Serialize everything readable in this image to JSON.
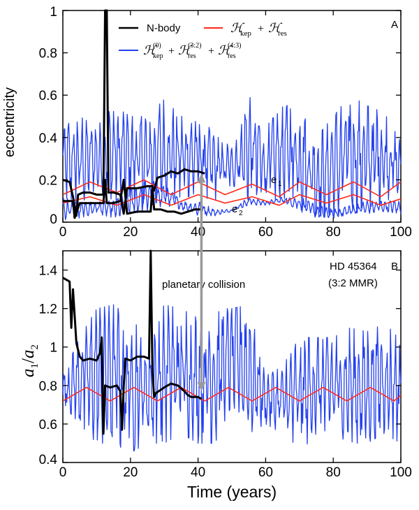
{
  "chart_data": [
    {
      "panel": "A",
      "type": "line",
      "ylabel": "eccentricity",
      "xlim": [
        0,
        100
      ],
      "ylim": [
        0,
        1
      ],
      "xticks": [
        0,
        20,
        40,
        60,
        80,
        100
      ],
      "yticks": [
        0,
        0.2,
        0.4,
        0.6,
        0.8,
        1
      ],
      "ytick_labels": [
        "0",
        "0.2",
        "0.4",
        "0.6",
        "0.8",
        "1"
      ],
      "grid": false,
      "legend": {
        "placement": "top",
        "entries": [
          {
            "label": "N-body",
            "color": "#000000"
          },
          {
            "label": "H_kep + H_res",
            "color": "#ff2a1a"
          },
          {
            "label": "H_kep^(0) + H_res^(3:2) + H_res^(4:3)",
            "color": "#2340ee"
          }
        ]
      },
      "annotations": [
        {
          "text": "e",
          "sub": "1",
          "x": 60,
          "y": 0.19
        },
        {
          "text": "e",
          "sub": "2",
          "x": 49,
          "y": 0.05
        }
      ],
      "series": [
        {
          "name": "N-body e1",
          "color": "#000000",
          "x": [
            0,
            2,
            3,
            4,
            4.5,
            6,
            8,
            10,
            12,
            12.5,
            13,
            13.5,
            15,
            17,
            18,
            19,
            22,
            25,
            26.5,
            27,
            28,
            30,
            32,
            34,
            36,
            38,
            40,
            42
          ],
          "y": [
            0.2,
            0.19,
            0.12,
            0.03,
            0.13,
            0.14,
            0.14,
            0.13,
            0.13,
            1.0,
            1.0,
            0.14,
            0.14,
            0.13,
            0.04,
            0.16,
            0.16,
            0.17,
            0.17,
            0.15,
            0.21,
            0.22,
            0.24,
            0.23,
            0.25,
            0.24,
            0.24,
            0.23
          ]
        },
        {
          "name": "N-body e2",
          "color": "#000000",
          "x": [
            0,
            2,
            3,
            3.5,
            5,
            8,
            11,
            12,
            12.5,
            13,
            15,
            17,
            18,
            19,
            22,
            26,
            26.5,
            27,
            29,
            31,
            33,
            35,
            37,
            39,
            41
          ],
          "y": [
            0.1,
            0.1,
            0.1,
            0.02,
            0.09,
            0.09,
            0.09,
            0.09,
            0.2,
            0.09,
            0.09,
            0.1,
            0.2,
            0.04,
            0.05,
            0.05,
            0.17,
            0.06,
            0.06,
            0.05,
            0.05,
            0.04,
            0.05,
            0.06,
            0.06
          ]
        },
        {
          "name": "H_kep + H_res e1",
          "color": "#ff2a1a",
          "x": [
            0,
            8,
            16,
            24,
            32,
            40,
            48,
            56,
            64,
            70,
            78,
            86,
            94,
            100
          ],
          "y": [
            0.13,
            0.19,
            0.14,
            0.2,
            0.13,
            0.19,
            0.13,
            0.18,
            0.12,
            0.19,
            0.13,
            0.19,
            0.12,
            0.19
          ]
        },
        {
          "name": "H_kep + H_res e2",
          "color": "#ff2a1a",
          "x": [
            0,
            8,
            16,
            24,
            32,
            40,
            48,
            56,
            64,
            70,
            78,
            86,
            94,
            100
          ],
          "y": [
            0.09,
            0.12,
            0.08,
            0.13,
            0.08,
            0.13,
            0.09,
            0.12,
            0.08,
            0.13,
            0.09,
            0.13,
            0.08,
            0.11
          ]
        },
        {
          "name": "H_kep^(0) + H_res e1 (band)",
          "color": "#2340ee",
          "x": [
            0,
            5,
            10,
            15,
            20,
            25,
            30,
            35,
            40,
            45,
            50,
            55,
            60,
            65,
            70,
            75,
            80,
            85,
            90,
            95,
            100
          ],
          "low": [
            0.12,
            0.08,
            0.16,
            0.1,
            0.12,
            0.08,
            0.1,
            0.12,
            0.12,
            0.1,
            0.18,
            0.1,
            0.08,
            0.12,
            0.05,
            0.03,
            0.02,
            0.04,
            0.05,
            0.1,
            0.12
          ],
          "high": [
            0.45,
            0.5,
            0.45,
            0.55,
            0.5,
            0.5,
            0.58,
            0.5,
            0.5,
            0.42,
            0.35,
            0.6,
            0.45,
            0.55,
            0.6,
            0.4,
            0.5,
            0.6,
            0.55,
            0.52,
            0.38
          ]
        },
        {
          "name": "H_kep^(0) + H_res e2 (band)",
          "color": "#2340ee",
          "x": [
            0,
            5,
            10,
            15,
            20,
            25,
            30,
            35,
            40,
            45,
            50,
            55,
            60,
            65,
            70,
            75,
            80,
            85,
            90,
            95,
            100
          ],
          "low": [
            0.01,
            0.02,
            0.04,
            0.02,
            0.04,
            0.05,
            0.08,
            0.06,
            0.03,
            0.03,
            0.05,
            0.08,
            0.08,
            0.09,
            0.06,
            0.02,
            0.02,
            0.03,
            0.04,
            0.05,
            0.04
          ],
          "high": [
            0.12,
            0.09,
            0.1,
            0.1,
            0.16,
            0.2,
            0.18,
            0.1,
            0.1,
            0.06,
            0.06,
            0.12,
            0.1,
            0.12,
            0.12,
            0.08,
            0.06,
            0.08,
            0.1,
            0.1,
            0.1
          ]
        }
      ]
    },
    {
      "panel": "B",
      "type": "line",
      "xlabel": "Time (years)",
      "ylabel": "a1/a2",
      "xlim": [
        0,
        100
      ],
      "ylim": [
        0.4,
        1.5
      ],
      "xticks": [
        0,
        20,
        40,
        60,
        80,
        100
      ],
      "yticks": [
        0.4,
        0.6,
        0.8,
        1,
        1.2,
        1.4
      ],
      "ytick_labels": [
        "0.4",
        "0.6",
        "0.8",
        "1",
        "1.2",
        "1.4"
      ],
      "grid": false,
      "annotations": [
        {
          "text": "HD 45364",
          "placement": "top-right"
        },
        {
          "text": "(3:2 MMR)",
          "placement": "top-right"
        },
        {
          "text": "planetary collision",
          "x": 41,
          "y": 1.32
        },
        {
          "text": "arrow marking collision",
          "x": 41,
          "y_from": 0.77,
          "y_to": 0.23,
          "axis": "spans both panels"
        }
      ],
      "series": [
        {
          "name": "N-body",
          "color": "#000000",
          "x": [
            0,
            1,
            2,
            2.5,
            3,
            4,
            5,
            6,
            8,
            10,
            11,
            11.5,
            12,
            12.5,
            14,
            16,
            17,
            17.5,
            18,
            18.5,
            20,
            22,
            24,
            25.5,
            26,
            26.5,
            27,
            27.5,
            30,
            32,
            34,
            36,
            37,
            38,
            40,
            41
          ],
          "y": [
            1.36,
            1.35,
            1.34,
            1.1,
            1.3,
            1.02,
            0.95,
            0.93,
            0.94,
            0.93,
            0.97,
            1.05,
            0.55,
            0.8,
            0.79,
            0.8,
            0.77,
            0.57,
            0.79,
            0.94,
            0.93,
            0.95,
            0.95,
            0.94,
            1.5,
            0.87,
            0.74,
            0.76,
            0.79,
            0.81,
            0.8,
            0.77,
            0.75,
            0.74,
            0.74,
            0.73
          ]
        },
        {
          "name": "H_kep + H_res",
          "color": "#ff2a1a",
          "x": [
            0,
            7,
            14,
            21,
            28,
            35,
            42,
            49,
            56,
            63,
            70,
            77,
            84,
            91,
            98,
            100
          ],
          "y": [
            0.72,
            0.79,
            0.72,
            0.79,
            0.72,
            0.79,
            0.72,
            0.79,
            0.72,
            0.79,
            0.72,
            0.79,
            0.72,
            0.79,
            0.72,
            0.75
          ]
        },
        {
          "name": "H_kep^(0) + H_res (band)",
          "color": "#2340ee",
          "x": [
            0,
            5,
            10,
            15,
            20,
            25,
            30,
            35,
            40,
            45,
            50,
            55,
            60,
            65,
            70,
            75,
            80,
            85,
            90,
            95,
            100
          ],
          "low": [
            0.7,
            0.6,
            0.5,
            0.5,
            0.45,
            0.5,
            0.5,
            0.55,
            0.5,
            0.5,
            0.7,
            0.55,
            0.6,
            0.55,
            0.45,
            0.55,
            0.55,
            0.5,
            0.5,
            0.55,
            0.5
          ],
          "high": [
            0.85,
            1.05,
            1.2,
            1.22,
            1.15,
            1.05,
            1.22,
            1.2,
            1.15,
            1.2,
            1.2,
            1.22,
            0.85,
            0.9,
            1.05,
            1.05,
            1.05,
            1.1,
            1.08,
            1.12,
            1.05
          ]
        }
      ]
    }
  ],
  "labels": {
    "panel_a_letter": "A",
    "panel_b_letter": "B",
    "legend_nbody": "N-body",
    "legend_kep": "kep",
    "legend_res": "res",
    "legend_superscript_0": "(0)",
    "legend_superscript_32": "(3:2)",
    "legend_superscript_43": "(4:3)",
    "e1_main": "e",
    "e1_sub": "1",
    "e2_main": "e",
    "e2_sub": "2",
    "hd_name": "HD 45364",
    "hd_mmr": "(3:2 MMR)",
    "collision_label": "planetary collision",
    "ylabel_a": "eccentricity",
    "ylabel_b_a": "a",
    "ylabel_b_sub1": "1",
    "ylabel_b_slash": "/",
    "ylabel_b_sub2": "2",
    "xlabel_b": "Time (years)",
    "xtick_labels": [
      "0",
      "20",
      "40",
      "60",
      "80",
      "100"
    ]
  },
  "colors": {
    "nbody": "#000000",
    "red": "#ff2a1a",
    "blue": "#2340ee",
    "arrow": "#9a9a9a"
  }
}
